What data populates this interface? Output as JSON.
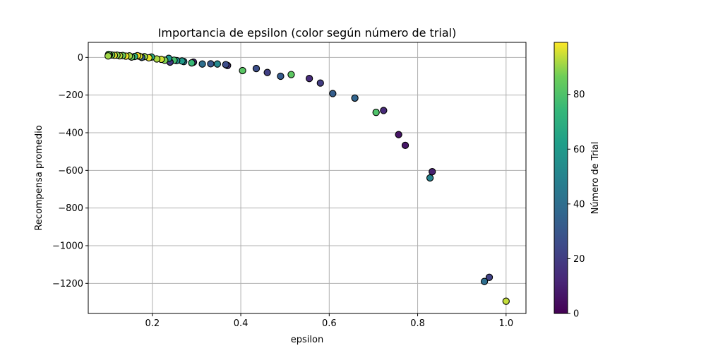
{
  "chart_data": {
    "type": "scatter",
    "title": "Importancia de epsilon (color según número de trial)",
    "xlabel": "epsilon",
    "ylabel": "Recompensa promedio",
    "xlim": [
      0.055,
      1.045
    ],
    "ylim": [
      -1360,
      80
    ],
    "xticks": [
      0.2,
      0.4,
      0.6,
      0.8,
      1.0
    ],
    "xtick_labels": [
      "0.2",
      "0.4",
      "0.6",
      "0.8",
      "1.0"
    ],
    "yticks": [
      0,
      -200,
      -400,
      -600,
      -800,
      -1000,
      -1200
    ],
    "ytick_labels": [
      "0",
      "−200",
      "−400",
      "−600",
      "−800",
      "−1000",
      "−1200"
    ],
    "grid": true,
    "colormap": "viridis",
    "colorbar": {
      "label": "Número de Trial",
      "range": [
        0,
        99
      ],
      "ticks": [
        0,
        20,
        40,
        60,
        80
      ],
      "tick_labels": [
        "0",
        "20",
        "40",
        "60",
        "80"
      ]
    },
    "points": [
      {
        "x": 1.0,
        "y": -1295,
        "trial": 94
      },
      {
        "x": 0.962,
        "y": -1168,
        "trial": 22
      },
      {
        "x": 0.951,
        "y": -1190,
        "trial": 40
      },
      {
        "x": 0.833,
        "y": -607,
        "trial": 10
      },
      {
        "x": 0.828,
        "y": -640,
        "trial": 50
      },
      {
        "x": 0.772,
        "y": -467,
        "trial": 7
      },
      {
        "x": 0.757,
        "y": -410,
        "trial": 6
      },
      {
        "x": 0.723,
        "y": -282,
        "trial": 13
      },
      {
        "x": 0.706,
        "y": -292,
        "trial": 80
      },
      {
        "x": 0.658,
        "y": -216,
        "trial": 36
      },
      {
        "x": 0.608,
        "y": -192,
        "trial": 33
      },
      {
        "x": 0.58,
        "y": -136,
        "trial": 20
      },
      {
        "x": 0.555,
        "y": -112,
        "trial": 14
      },
      {
        "x": 0.514,
        "y": -91,
        "trial": 83
      },
      {
        "x": 0.49,
        "y": -100,
        "trial": 32
      },
      {
        "x": 0.46,
        "y": -80,
        "trial": 21
      },
      {
        "x": 0.435,
        "y": -59,
        "trial": 27
      },
      {
        "x": 0.404,
        "y": -70,
        "trial": 82
      },
      {
        "x": 0.37,
        "y": -43,
        "trial": 15
      },
      {
        "x": 0.366,
        "y": -38,
        "trial": 26
      },
      {
        "x": 0.347,
        "y": -35,
        "trial": 52
      },
      {
        "x": 0.332,
        "y": -34,
        "trial": 30
      },
      {
        "x": 0.313,
        "y": -35,
        "trial": 40
      },
      {
        "x": 0.293,
        "y": -25,
        "trial": 12
      },
      {
        "x": 0.289,
        "y": -29,
        "trial": 75
      },
      {
        "x": 0.271,
        "y": -22,
        "trial": 44
      },
      {
        "x": 0.267,
        "y": -19,
        "trial": 60
      },
      {
        "x": 0.255,
        "y": -17,
        "trial": 55
      },
      {
        "x": 0.249,
        "y": -15,
        "trial": 78
      },
      {
        "x": 0.24,
        "y": -25,
        "trial": 18
      },
      {
        "x": 0.237,
        "y": -5,
        "trial": 58
      },
      {
        "x": 0.228,
        "y": -15,
        "trial": 88
      },
      {
        "x": 0.22,
        "y": -10,
        "trial": 95
      },
      {
        "x": 0.21,
        "y": -8,
        "trial": 92
      },
      {
        "x": 0.198,
        "y": 2,
        "trial": 70
      },
      {
        "x": 0.192,
        "y": -2,
        "trial": 97
      },
      {
        "x": 0.182,
        "y": 4,
        "trial": 90
      },
      {
        "x": 0.176,
        "y": 0,
        "trial": 35
      },
      {
        "x": 0.171,
        "y": 6,
        "trial": 96
      },
      {
        "x": 0.166,
        "y": 9,
        "trial": 99
      },
      {
        "x": 0.16,
        "y": 5,
        "trial": 73
      },
      {
        "x": 0.153,
        "y": 2,
        "trial": 85
      },
      {
        "x": 0.148,
        "y": 8,
        "trial": 91
      },
      {
        "x": 0.14,
        "y": 7,
        "trial": 98
      },
      {
        "x": 0.133,
        "y": 10,
        "trial": 86
      },
      {
        "x": 0.126,
        "y": 9,
        "trial": 93
      },
      {
        "x": 0.12,
        "y": 12,
        "trial": 89
      },
      {
        "x": 0.114,
        "y": 11,
        "trial": 97
      },
      {
        "x": 0.108,
        "y": 13,
        "trial": 87
      },
      {
        "x": 0.103,
        "y": 14,
        "trial": 94
      },
      {
        "x": 0.101,
        "y": 16,
        "trial": 84
      },
      {
        "x": 0.1,
        "y": 8,
        "trial": 91
      }
    ]
  }
}
